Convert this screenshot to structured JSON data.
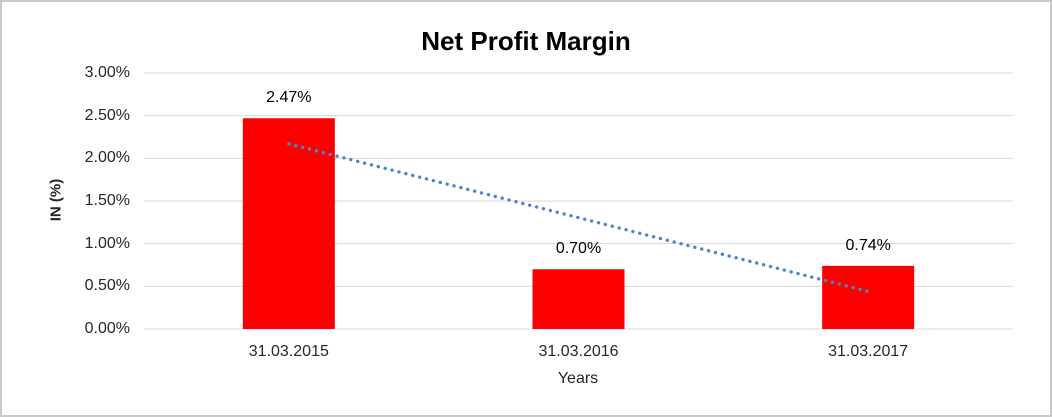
{
  "chart_data": {
    "type": "bar",
    "title": "Net Profit Margin",
    "xlabel": "Years",
    "ylabel": "IN (%)",
    "categories": [
      "31.03.2015",
      "31.03.2016",
      "31.03.2017"
    ],
    "values": [
      2.47,
      0.7,
      0.74
    ],
    "data_labels": [
      "2.47%",
      "0.70%",
      "0.74%"
    ],
    "ylim": [
      0,
      3.0
    ],
    "ytick_step": 0.5,
    "ytick_labels": [
      "3.00%",
      "2.50%",
      "2.00%",
      "1.50%",
      "1.00%",
      "0.50%",
      "0.00%"
    ],
    "ytick_values": [
      3.0,
      2.5,
      2.0,
      1.5,
      1.0,
      0.5,
      0.0
    ],
    "grid": true,
    "legend": "none",
    "trendline": {
      "type": "linear",
      "style": "round-dot",
      "start_value": 2.17,
      "end_value": 0.44
    }
  },
  "colors": {
    "bar": "#ff0000",
    "trendline": "#4a86c8",
    "gridline": "#d9d9d9",
    "title_text": "#000000",
    "tick_text": "#262626",
    "frame_border": "#c9c9c9",
    "background": "#ffffff"
  }
}
